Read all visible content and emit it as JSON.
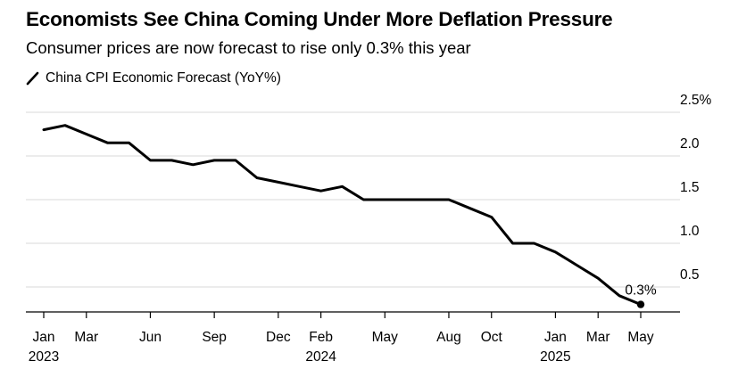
{
  "header": {
    "title": "Economists See China Coming Under More Deflation Pressure",
    "subtitle": "Consumer prices are now forecast to rise only 0.3% this year"
  },
  "colors": {
    "line": "#000000",
    "grid": "#d9d9d9",
    "axis": "#000000",
    "text": "#000000",
    "background": "#ffffff"
  },
  "chart_data": {
    "type": "line",
    "title": "Economists See China Coming Under More Deflation Pressure",
    "subtitle": "Consumer prices are now forecast to rise only 0.3% this year",
    "series": [
      {
        "name": "China CPI Economic Forecast (YoY%)",
        "points": [
          {
            "x": "2023-01",
            "y": 2.3
          },
          {
            "x": "2023-02",
            "y": 2.35
          },
          {
            "x": "2023-03",
            "y": 2.25
          },
          {
            "x": "2023-04",
            "y": 2.15
          },
          {
            "x": "2023-05",
            "y": 2.15
          },
          {
            "x": "2023-06",
            "y": 1.95
          },
          {
            "x": "2023-07",
            "y": 1.95
          },
          {
            "x": "2023-08",
            "y": 1.9
          },
          {
            "x": "2023-09",
            "y": 1.95
          },
          {
            "x": "2023-10",
            "y": 1.95
          },
          {
            "x": "2023-11",
            "y": 1.75
          },
          {
            "x": "2023-12",
            "y": 1.7
          },
          {
            "x": "2024-01",
            "y": 1.65
          },
          {
            "x": "2024-02",
            "y": 1.6
          },
          {
            "x": "2024-03",
            "y": 1.65
          },
          {
            "x": "2024-04",
            "y": 1.5
          },
          {
            "x": "2024-05",
            "y": 1.5
          },
          {
            "x": "2024-06",
            "y": 1.5
          },
          {
            "x": "2024-07",
            "y": 1.5
          },
          {
            "x": "2024-08",
            "y": 1.5
          },
          {
            "x": "2024-09",
            "y": 1.4
          },
          {
            "x": "2024-10",
            "y": 1.3
          },
          {
            "x": "2024-11",
            "y": 1.0
          },
          {
            "x": "2024-12",
            "y": 1.0
          },
          {
            "x": "2025-01",
            "y": 0.9
          },
          {
            "x": "2025-02",
            "y": 0.75
          },
          {
            "x": "2025-03",
            "y": 0.6
          },
          {
            "x": "2025-04",
            "y": 0.4
          },
          {
            "x": "2025-05",
            "y": 0.3
          }
        ]
      }
    ],
    "x_ticks": [
      {
        "x": "2023-01",
        "label": "Jan",
        "year": "2023"
      },
      {
        "x": "2023-03",
        "label": "Mar",
        "year": ""
      },
      {
        "x": "2023-06",
        "label": "Jun",
        "year": ""
      },
      {
        "x": "2023-09",
        "label": "Sep",
        "year": ""
      },
      {
        "x": "2023-12",
        "label": "Dec",
        "year": ""
      },
      {
        "x": "2024-02",
        "label": "Feb",
        "year": "2024"
      },
      {
        "x": "2024-05",
        "label": "May",
        "year": ""
      },
      {
        "x": "2024-08",
        "label": "Aug",
        "year": ""
      },
      {
        "x": "2024-10",
        "label": "Oct",
        "year": ""
      },
      {
        "x": "2025-01",
        "label": "Jan",
        "year": "2025"
      },
      {
        "x": "2025-03",
        "label": "Mar",
        "year": ""
      },
      {
        "x": "2025-05",
        "label": "May",
        "year": ""
      }
    ],
    "y_ticks": [
      {
        "value": 0.5,
        "label": "0.5"
      },
      {
        "value": 1.0,
        "label": "1.0"
      },
      {
        "value": 1.5,
        "label": "1.5"
      },
      {
        "value": 2.0,
        "label": "2.0"
      },
      {
        "value": 2.5,
        "label": "2.5%"
      }
    ],
    "ylim": [
      0.2,
      2.5
    ],
    "xlim": [
      "2023-01",
      "2025-05"
    ],
    "grid": true,
    "legend": "top-left",
    "annotations": [
      {
        "x": "2025-05",
        "y": 0.3,
        "text": "0.3%"
      }
    ]
  }
}
